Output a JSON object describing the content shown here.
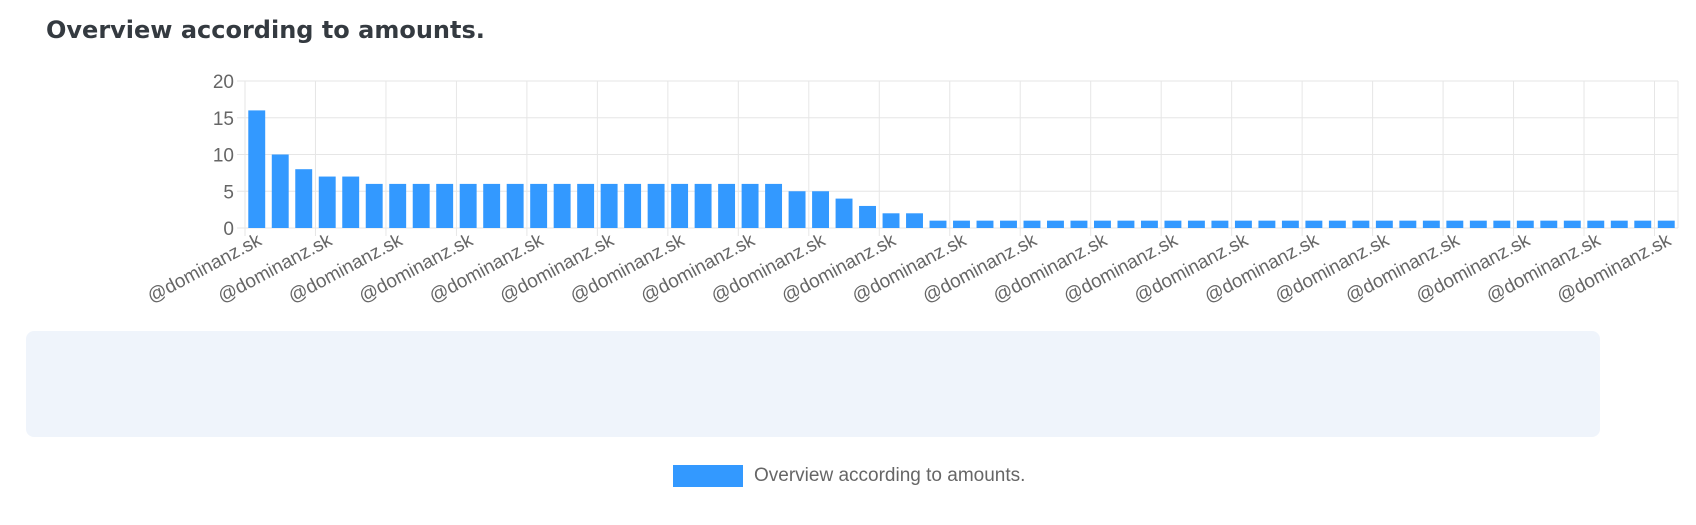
{
  "page": {
    "title": "Overview according to amounts."
  },
  "colors": {
    "bar": "#3399ff",
    "grid": "#e6e6e6",
    "text": "#666666",
    "title": "#343a40"
  },
  "chart_data": {
    "type": "bar",
    "title": "",
    "xlabel": "",
    "ylabel": "",
    "ylim": [
      0,
      20
    ],
    "yticks": [
      0,
      5,
      10,
      15,
      20
    ],
    "grid": true,
    "legend_position": "bottom",
    "category_label": "@dominanz.sk",
    "series": [
      {
        "name": "Overview according to amounts.",
        "values": [
          16,
          10,
          8,
          7,
          7,
          6,
          6,
          6,
          6,
          6,
          6,
          6,
          6,
          6,
          6,
          6,
          6,
          6,
          6,
          6,
          6,
          6,
          6,
          5,
          5,
          4,
          3,
          2,
          2,
          1,
          1,
          1,
          1,
          1,
          1,
          1,
          1,
          1,
          1,
          1,
          1,
          1,
          1,
          1,
          1,
          1,
          1,
          1,
          1,
          1,
          1,
          1,
          1,
          1,
          1,
          1,
          1,
          1,
          1,
          1,
          1
        ]
      }
    ]
  }
}
